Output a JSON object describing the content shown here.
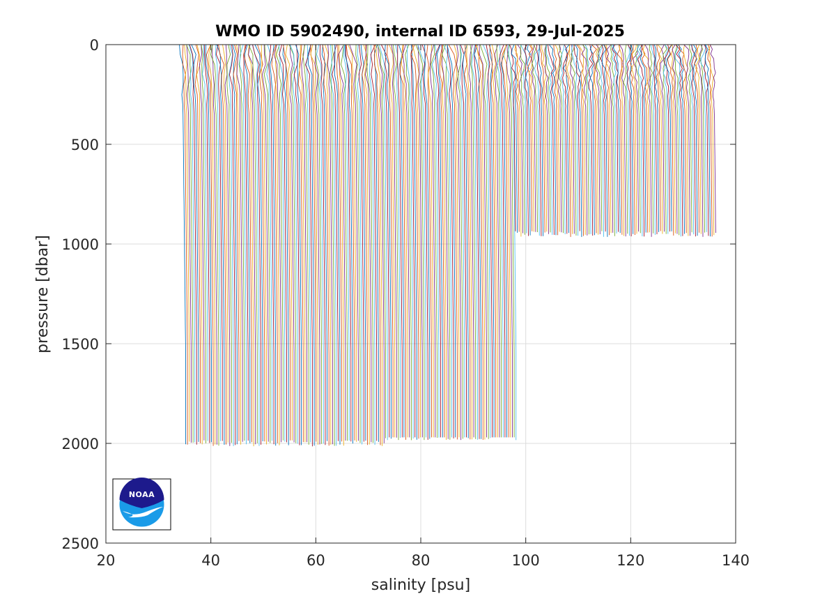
{
  "chart_data": {
    "type": "line",
    "title": "WMO ID 5902490, internal ID 6593, 29-Jul-2025",
    "xlabel": "salinity [psu]",
    "ylabel": "pressure [dbar]",
    "xlim": [
      20,
      140
    ],
    "ylim": [
      0,
      2500
    ],
    "y_reversed": true,
    "x_ticks": [
      20,
      40,
      60,
      80,
      100,
      120,
      140
    ],
    "y_ticks": [
      0,
      500,
      1000,
      1500,
      2000,
      2500
    ],
    "grid": true,
    "legend": "none",
    "description": "Waterfall of salinity profiles, each offset in salinity; successive profiles shift by about 0.35 psu",
    "profile_groups": [
      {
        "x_start": 34.9,
        "x_end": 73.0,
        "max_pressure": 2000,
        "shallow_salinity": 34.6,
        "deep_salinity": 35.2
      },
      {
        "x_start": 73.0,
        "x_end": 98.0,
        "max_pressure": 1970,
        "transition_pressure": 1100,
        "shallow_salinity": 34.6,
        "deep_salinity": 35.2
      },
      {
        "x_start": 98.0,
        "x_end": 136.2,
        "max_pressure": 950,
        "shallow_salinity": 34.6,
        "deep_salinity": 35.2
      }
    ],
    "profile_step": 0.35,
    "series_colors": [
      "#0072bd",
      "#d95319",
      "#edb120",
      "#7e2f8e",
      "#77ac30",
      "#4dbeee",
      "#a2142f"
    ]
  },
  "logo": {
    "text": "NOAA",
    "name": "noaa-logo"
  }
}
